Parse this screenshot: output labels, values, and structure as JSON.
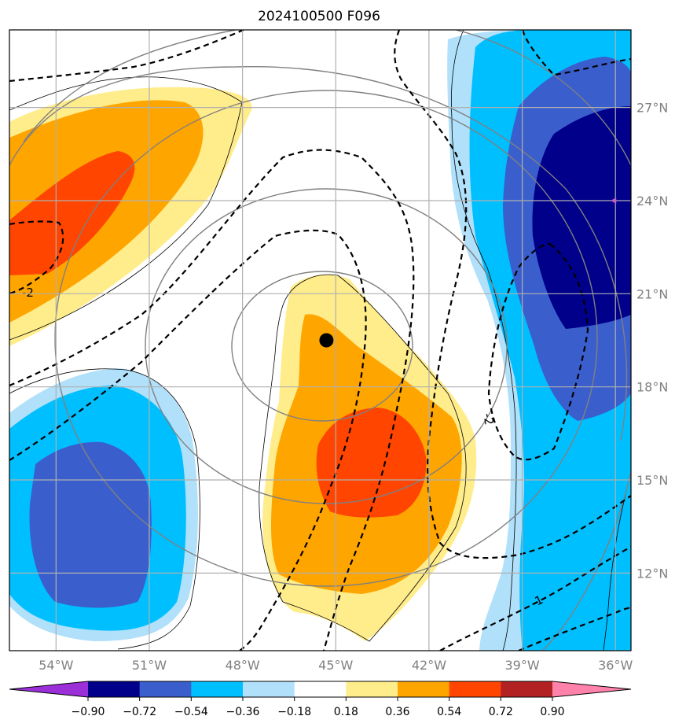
{
  "chart_data": {
    "type": "heatmap",
    "title": "2024100500 F096",
    "x_ticks": [
      "54°W",
      "51°W",
      "48°W",
      "45°W",
      "42°W",
      "39°W",
      "36°W"
    ],
    "y_ticks": [
      "12°N",
      "15°N",
      "18°N",
      "21°N",
      "24°N",
      "27°N"
    ],
    "x_range": [
      -55.5,
      -35.5
    ],
    "y_range": [
      9.5,
      29.5
    ],
    "grid": true,
    "colorbar": {
      "ticks": [
        "−0.90",
        "−0.72",
        "−0.54",
        "−0.36",
        "−0.18",
        "0.18",
        "0.36",
        "0.54",
        "0.72",
        "0.90"
      ],
      "levels": [
        -0.9,
        -0.72,
        -0.54,
        -0.36,
        -0.18,
        0.18,
        0.36,
        0.54,
        0.72,
        0.9
      ],
      "colors": [
        "#9b30d9",
        "#00008b",
        "#3a5fcd",
        "#00bfff",
        "#b0e0fa",
        "#ffffff",
        "#ffec8b",
        "#ffa500",
        "#ff4500",
        "#b22222",
        "#ff82ab"
      ],
      "extend": "both"
    },
    "contour_labels": [
      "-2",
      "-2",
      "-1"
    ],
    "marker": {
      "lon": -45.3,
      "lat": 19.5
    },
    "secondary_marker": {
      "lon": -36.0,
      "lat": 24.0,
      "color": "#c060c0"
    }
  }
}
